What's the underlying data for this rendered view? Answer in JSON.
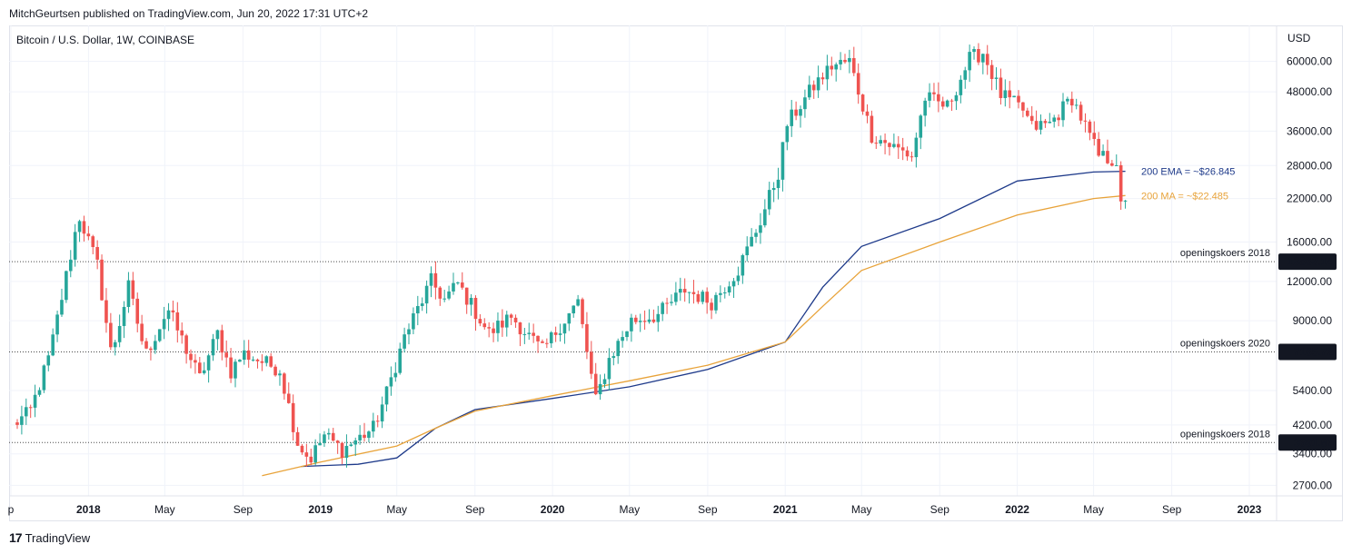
{
  "header": {
    "published": "MitchGeurtsen published on TradingView.com, Jun 20, 2022 17:31 UTC+2"
  },
  "footer": {
    "logo": "17",
    "brand": "TradingView"
  },
  "colors": {
    "up": "#26a69a",
    "down": "#ef5350",
    "ema": "#1e3a8a",
    "ma": "#e8a33a",
    "grid": "#f0f3fa",
    "level": "#4a4a4a",
    "badge_bg": "#131722"
  },
  "chart_data": {
    "type": "candlestick",
    "title": "Bitcoin / U.S. Dollar, 1W, COINBASE",
    "y_axis_unit": "USD",
    "y_scale": "log",
    "ylim": [
      2500,
      78000
    ],
    "x_axis_labels": [
      "p",
      "2018",
      "May",
      "Sep",
      "2019",
      "May",
      "Sep",
      "2020",
      "May",
      "Sep",
      "2021",
      "May",
      "Sep",
      "2022",
      "May",
      "Sep",
      "2023"
    ],
    "x_axis_label_dates": [
      "2017-09-01",
      "2018-01-01",
      "2018-05-01",
      "2018-09-01",
      "2019-01-01",
      "2019-05-01",
      "2019-09-01",
      "2020-01-01",
      "2020-05-01",
      "2020-09-01",
      "2021-01-01",
      "2021-05-01",
      "2021-09-01",
      "2022-01-01",
      "2022-05-01",
      "2022-09-01",
      "2023-01-01"
    ],
    "y_axis_ticks": [
      {
        "value": 60000,
        "label": "60000.00"
      },
      {
        "value": 48000,
        "label": "48000.00"
      },
      {
        "value": 36000,
        "label": "36000.00"
      },
      {
        "value": 28000,
        "label": "28000.00"
      },
      {
        "value": 22000,
        "label": "22000.00"
      },
      {
        "value": 16000,
        "label": "16000.00"
      },
      {
        "value": 12000,
        "label": "12000.00"
      },
      {
        "value": 9000,
        "label": "9000.00"
      },
      {
        "value": 5400,
        "label": "5400.00"
      },
      {
        "value": 4200,
        "label": "4200.00"
      },
      {
        "value": 3400,
        "label": "3400.00"
      },
      {
        "value": 2700,
        "label": "2700.00"
      }
    ],
    "price_series": {
      "name": "BTCUSD",
      "points": [
        {
          "date": "2017-09-04",
          "close": 4200
        },
        {
          "date": "2017-10-01",
          "close": 4600
        },
        {
          "date": "2017-11-01",
          "close": 7000
        },
        {
          "date": "2017-12-17",
          "close": 19500
        },
        {
          "date": "2018-01-15",
          "close": 13500
        },
        {
          "date": "2018-02-06",
          "close": 7000
        },
        {
          "date": "2018-03-05",
          "close": 11500
        },
        {
          "date": "2018-04-01",
          "close": 7000
        },
        {
          "date": "2018-05-06",
          "close": 9800
        },
        {
          "date": "2018-06-25",
          "close": 5900
        },
        {
          "date": "2018-07-23",
          "close": 8200
        },
        {
          "date": "2018-08-13",
          "close": 6200
        },
        {
          "date": "2018-09-01",
          "close": 7100
        },
        {
          "date": "2018-10-29",
          "close": 6300
        },
        {
          "date": "2018-11-26",
          "close": 3700
        },
        {
          "date": "2018-12-15",
          "close": 3250
        },
        {
          "date": "2019-01-07",
          "close": 3900
        },
        {
          "date": "2019-02-04",
          "close": 3500
        },
        {
          "date": "2019-03-25",
          "close": 4100
        },
        {
          "date": "2019-04-15",
          "close": 5300
        },
        {
          "date": "2019-05-13",
          "close": 8000
        },
        {
          "date": "2019-06-24",
          "close": 12000
        },
        {
          "date": "2019-07-15",
          "close": 10500
        },
        {
          "date": "2019-08-05",
          "close": 11800
        },
        {
          "date": "2019-09-23",
          "close": 8200
        },
        {
          "date": "2019-10-28",
          "close": 9300
        },
        {
          "date": "2019-12-16",
          "close": 7200
        },
        {
          "date": "2020-01-13",
          "close": 8700
        },
        {
          "date": "2020-02-10",
          "close": 10300
        },
        {
          "date": "2020-03-09",
          "close": 5000
        },
        {
          "date": "2020-03-30",
          "close": 6800
        },
        {
          "date": "2020-05-04",
          "close": 9000
        },
        {
          "date": "2020-06-15",
          "close": 9400
        },
        {
          "date": "2020-07-27",
          "close": 11300
        },
        {
          "date": "2020-09-07",
          "close": 10300
        },
        {
          "date": "2020-10-19",
          "close": 13100
        },
        {
          "date": "2020-11-23",
          "close": 18700
        },
        {
          "date": "2020-12-21",
          "close": 26500
        },
        {
          "date": "2021-01-04",
          "close": 38000
        },
        {
          "date": "2021-02-15",
          "close": 50000
        },
        {
          "date": "2021-03-15",
          "close": 58000
        },
        {
          "date": "2021-04-12",
          "close": 60000
        },
        {
          "date": "2021-05-17",
          "close": 35000
        },
        {
          "date": "2021-06-21",
          "close": 32000
        },
        {
          "date": "2021-07-19",
          "close": 30000
        },
        {
          "date": "2021-08-09",
          "close": 46000
        },
        {
          "date": "2021-09-13",
          "close": 43000
        },
        {
          "date": "2021-10-18",
          "close": 61000
        },
        {
          "date": "2021-11-08",
          "close": 64000
        },
        {
          "date": "2021-12-06",
          "close": 47000
        },
        {
          "date": "2022-01-10",
          "close": 42000
        },
        {
          "date": "2022-01-24",
          "close": 37000
        },
        {
          "date": "2022-02-21",
          "close": 38000
        },
        {
          "date": "2022-03-28",
          "close": 46000
        },
        {
          "date": "2022-05-09",
          "close": 30000
        },
        {
          "date": "2022-06-06",
          "close": 29000
        },
        {
          "date": "2022-06-13",
          "close": 20500
        },
        {
          "date": "2022-06-20",
          "close": 20900
        }
      ]
    },
    "moving_averages": [
      {
        "name": "200 EMA",
        "label": "200 EMA = ~$26.845",
        "color": "#1e3a8a",
        "points": [
          {
            "date": "2018-12-01",
            "value": 3100
          },
          {
            "date": "2019-03-01",
            "value": 3150
          },
          {
            "date": "2019-05-01",
            "value": 3300
          },
          {
            "date": "2019-07-01",
            "value": 4100
          },
          {
            "date": "2019-09-01",
            "value": 4700
          },
          {
            "date": "2020-01-01",
            "value": 5100
          },
          {
            "date": "2020-05-01",
            "value": 5550
          },
          {
            "date": "2020-09-01",
            "value": 6300
          },
          {
            "date": "2021-01-01",
            "value": 7700
          },
          {
            "date": "2021-03-01",
            "value": 11500
          },
          {
            "date": "2021-05-01",
            "value": 15500
          },
          {
            "date": "2021-09-01",
            "value": 19000
          },
          {
            "date": "2022-01-01",
            "value": 25000
          },
          {
            "date": "2022-05-01",
            "value": 26700
          },
          {
            "date": "2022-06-20",
            "value": 26845
          }
        ]
      },
      {
        "name": "200 MA",
        "label": "200 MA  = ~$22.485",
        "color": "#e8a33a",
        "points": [
          {
            "date": "2018-10-01",
            "value": 2900
          },
          {
            "date": "2019-01-01",
            "value": 3200
          },
          {
            "date": "2019-05-01",
            "value": 3600
          },
          {
            "date": "2019-07-01",
            "value": 4100
          },
          {
            "date": "2019-09-01",
            "value": 4650
          },
          {
            "date": "2020-01-01",
            "value": 5200
          },
          {
            "date": "2020-05-01",
            "value": 5800
          },
          {
            "date": "2020-09-01",
            "value": 6500
          },
          {
            "date": "2021-01-01",
            "value": 7700
          },
          {
            "date": "2021-03-01",
            "value": 10000
          },
          {
            "date": "2021-05-01",
            "value": 13000
          },
          {
            "date": "2021-09-01",
            "value": 16000
          },
          {
            "date": "2022-01-01",
            "value": 19500
          },
          {
            "date": "2022-05-01",
            "value": 22000
          },
          {
            "date": "2022-06-20",
            "value": 22485
          }
        ]
      }
    ],
    "levels": [
      {
        "name": "openingskoers 2018",
        "value": 13863.14,
        "badge": "13863.14"
      },
      {
        "name": "openingskoers 2020",
        "value": 7165.72,
        "badge": "7165.72"
      },
      {
        "name": "openingskoers 2018",
        "value": 3691.87,
        "badge": "3691.87"
      }
    ],
    "grid": true
  }
}
